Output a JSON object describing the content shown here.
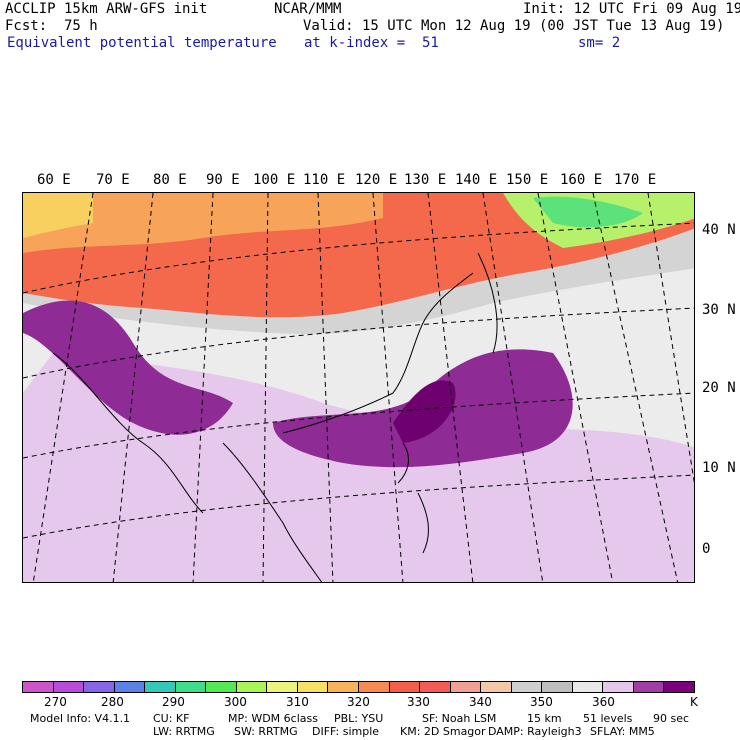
{
  "header": {
    "model": "ACCLIP 15km ARW-GFS init",
    "org": "NCAR/MMM",
    "init": "Init: 12 UTC Fri 09 Aug 19",
    "fcst_label": "Fcst:",
    "fcst_value": "75 h",
    "valid": "Valid: 15 UTC Mon 12 Aug 19 (00 JST Tue 13 Aug 19)",
    "field": "Equivalent potential temperature",
    "level": "at k-index =  51",
    "smoothing": "sm= 2"
  },
  "map": {
    "lon_labels": [
      "60 E",
      "70 E",
      "80 E",
      "90 E",
      "100 E",
      "110 E",
      "120 E",
      "130 E",
      "140 E",
      "150 E",
      "160 E",
      "170 E"
    ],
    "lat_labels": [
      "40 N",
      "30 N",
      "20 N",
      "10 N",
      "0"
    ],
    "field_unit": "K"
  },
  "legend": {
    "colors": [
      "#cc55cc",
      "#b84cd9",
      "#8466e6",
      "#5c82e8",
      "#33c9b8",
      "#3fdc8a",
      "#55e855",
      "#aaf555",
      "#eaf47a",
      "#f8e060",
      "#f6b35a",
      "#f78a50",
      "#f45f4a",
      "#f25c55",
      "#f0a090",
      "#f2c8a8",
      "#cfcfcf",
      "#bebebe",
      "#e8e8e8",
      "#e7c6ec",
      "#a13ea6",
      "#7b007b"
    ],
    "ticks": [
      "270",
      "280",
      "290",
      "300",
      "310",
      "320",
      "330",
      "340",
      "350",
      "360"
    ],
    "unit": "K"
  },
  "model_info": {
    "line1": [
      "Model Info: V4.1.1",
      "CU: KF",
      "MP: WDM 6class",
      "PBL: YSU",
      "SF: Noah LSM",
      "15 km",
      "51 levels",
      "90 sec"
    ],
    "line2": [
      "LW: RRTMG",
      "SW: RRTMG",
      "DIFF: simple",
      "KM: 2D Smagor",
      "DAMP: Rayleigh3",
      "SFLAY: MM5"
    ]
  }
}
